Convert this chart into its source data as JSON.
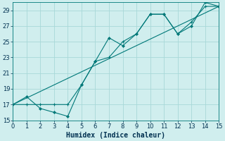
{
  "xlabel": "Humidex (Indice chaleur)",
  "xlim": [
    0,
    15
  ],
  "ylim": [
    15,
    30
  ],
  "yticks": [
    15,
    17,
    19,
    21,
    23,
    25,
    27,
    29
  ],
  "xticks": [
    0,
    1,
    2,
    3,
    4,
    5,
    6,
    7,
    8,
    9,
    10,
    11,
    12,
    13,
    14,
    15
  ],
  "curve1_x": [
    0,
    1,
    2,
    3,
    4,
    5,
    6,
    7,
    8,
    9,
    10,
    11,
    12,
    13,
    14,
    15
  ],
  "curve1_y": [
    17.0,
    18.0,
    16.5,
    16.0,
    15.5,
    19.5,
    22.5,
    25.5,
    24.5,
    26.0,
    28.5,
    28.5,
    26.0,
    27.0,
    30.0,
    29.5
  ],
  "curve2_x": [
    0,
    1,
    2,
    3,
    4,
    5,
    6,
    7,
    8,
    9,
    10,
    11,
    12,
    13,
    14,
    15
  ],
  "curve2_y": [
    17.0,
    17.0,
    17.0,
    17.0,
    17.0,
    19.5,
    22.5,
    23.0,
    25.0,
    26.0,
    28.5,
    28.5,
    26.0,
    27.5,
    29.5,
    29.5
  ],
  "ref_line_x": [
    0,
    15
  ],
  "ref_line_y": [
    17.0,
    29.5
  ],
  "line_color": "#007878",
  "bg_color": "#d0eeee",
  "grid_color": "#a8d8d8",
  "tick_fontsize": 6,
  "label_fontsize": 7
}
